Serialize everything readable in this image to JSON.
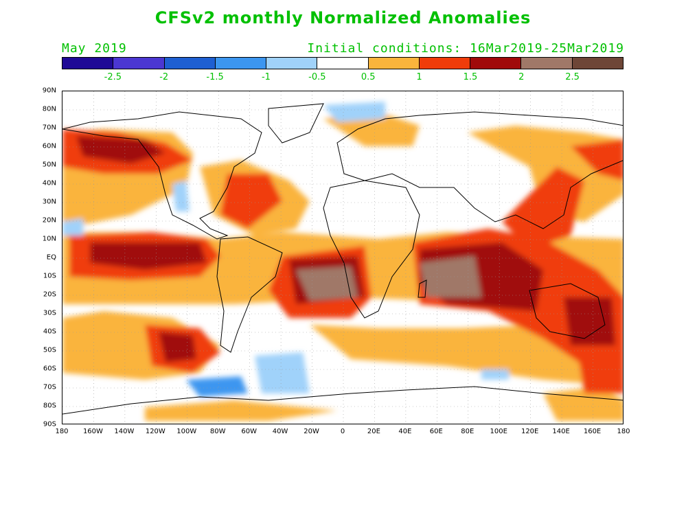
{
  "title": "CFSv2 monthly Normalized Anomalies",
  "month_label": "May 2019",
  "initial_conditions": "Initial conditions: 16Mar2019-25Mar2019",
  "colorbar": {
    "colors": [
      "#1f0a96",
      "#4b37d2",
      "#1e5fd2",
      "#3c96f0",
      "#a0d2fa",
      "#ffffff",
      "#fab43c",
      "#f03c0a",
      "#a00a0a",
      "#a07868",
      "#6e4637"
    ],
    "labels": [
      "-2.5",
      "-2",
      "-1.5",
      "-1",
      "-0.5",
      "0.5",
      "1",
      "1.5",
      "2",
      "2.5"
    ]
  },
  "axes": {
    "lat_labels": [
      "90N",
      "80N",
      "70N",
      "60N",
      "50N",
      "40N",
      "30N",
      "20N",
      "10N",
      "EQ",
      "10S",
      "20S",
      "30S",
      "40S",
      "50S",
      "60S",
      "70S",
      "80S",
      "90S"
    ],
    "lon_labels": [
      "180",
      "160W",
      "140W",
      "120W",
      "100W",
      "80W",
      "60W",
      "40W",
      "20W",
      "0",
      "20E",
      "40E",
      "60E",
      "80E",
      "100E",
      "120E",
      "140E",
      "160E",
      "180"
    ]
  }
}
